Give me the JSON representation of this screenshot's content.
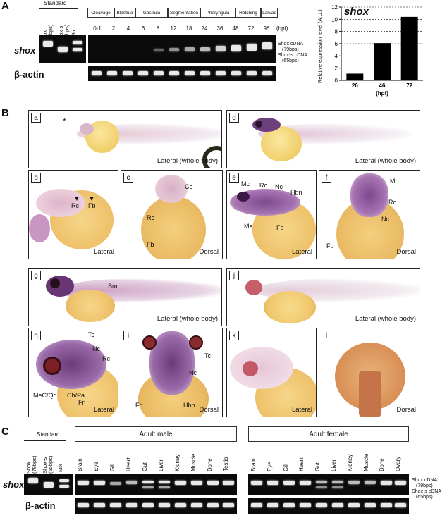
{
  "panel_a": {
    "letter": "A",
    "standard_label": "Standard",
    "standard_lanes": [
      "Shox (79bps)",
      "Shox-s (65bps)",
      "Mix"
    ],
    "stages": [
      "Cleavage",
      "Blastula",
      "Gastrula",
      "Segmentation",
      "Pharyngula",
      "Hatching",
      "Larvae"
    ],
    "hpf_values": [
      "0-1",
      "2",
      "4",
      "6",
      "8",
      "12",
      "18",
      "24",
      "36",
      "48",
      "72",
      "96"
    ],
    "hpf_unit": "(hpf)",
    "gene": "shox",
    "control": "β-actin",
    "legend_shox": "Shox cDNA",
    "legend_shox_bp": "(79bps)",
    "legend_shoxs": "Shox-s cDNA",
    "legend_shoxs_bp": "(65bps)"
  },
  "chart_data": {
    "type": "bar",
    "title": "shox",
    "categories": [
      "26",
      "46",
      "72"
    ],
    "values": [
      1.1,
      6.1,
      10.4
    ],
    "xlabel": "(hpf)",
    "ylabel": "Relative expression level (A.U.)",
    "ylim": [
      0,
      12
    ],
    "yticks": [
      "0",
      "2",
      "4",
      "6",
      "8",
      "10",
      "12"
    ],
    "grid": true,
    "bar_color": "#000000"
  },
  "panel_b": {
    "letter": "B",
    "photos": [
      {
        "id": "a",
        "caption": "Lateral (whole body)",
        "labels": [
          "*"
        ]
      },
      {
        "id": "b",
        "caption": "Lateral",
        "labels": [
          "Rc",
          "Fb"
        ]
      },
      {
        "id": "c",
        "caption": "Dorsal",
        "labels": [
          "Ce",
          "Rc",
          "Fb"
        ]
      },
      {
        "id": "d",
        "caption": "Lateral (whole body)",
        "labels": []
      },
      {
        "id": "e",
        "caption": "Lateral",
        "labels": [
          "Mc",
          "Rc",
          "Nc",
          "Hbn",
          "Ma",
          "Fb"
        ]
      },
      {
        "id": "f",
        "caption": "Dorsal",
        "labels": [
          "Mc",
          "Rc",
          "Nc",
          "Fb"
        ]
      },
      {
        "id": "g",
        "caption": "Lateral (whole body)",
        "labels": [
          "Sm"
        ]
      },
      {
        "id": "h",
        "caption": "Lateral",
        "labels": [
          "Tc",
          "Nc",
          "Rc",
          "MeC/Qd",
          "Ch/Pa",
          "Fn"
        ]
      },
      {
        "id": "i",
        "caption": "Dorsal",
        "labels": [
          "Tc",
          "Nc",
          "Fn",
          "Hbn"
        ]
      },
      {
        "id": "j",
        "caption": "Lateral (whole body)",
        "labels": []
      },
      {
        "id": "k",
        "caption": "Lateral",
        "labels": []
      },
      {
        "id": "l",
        "caption": "Dorsal",
        "labels": []
      }
    ]
  },
  "panel_c": {
    "letter": "C",
    "standard_label": "Standard",
    "standard_lanes": [
      "Shox (79bps)",
      "Shox-s (65bps)",
      "Mix"
    ],
    "male_header": "Adult male",
    "female_header": "Adult female",
    "male_tissues": [
      "Brain",
      "Eye",
      "Gill",
      "Heart",
      "Gut",
      "Liver",
      "Kidney",
      "Muscle",
      "Bone",
      "Testis"
    ],
    "female_tissues": [
      "Brain",
      "Eye",
      "Gill",
      "Heart",
      "Gut",
      "Liver",
      "Kidney",
      "Muscle",
      "Bone",
      "Ovary"
    ],
    "gene": "shox",
    "control": "β-actin",
    "legend_shox": "Shox cDNA",
    "legend_shox_bp": "(79bps)",
    "legend_shoxs": "Shox-s cDNA",
    "legend_shoxs_bp": "(65bps)"
  }
}
